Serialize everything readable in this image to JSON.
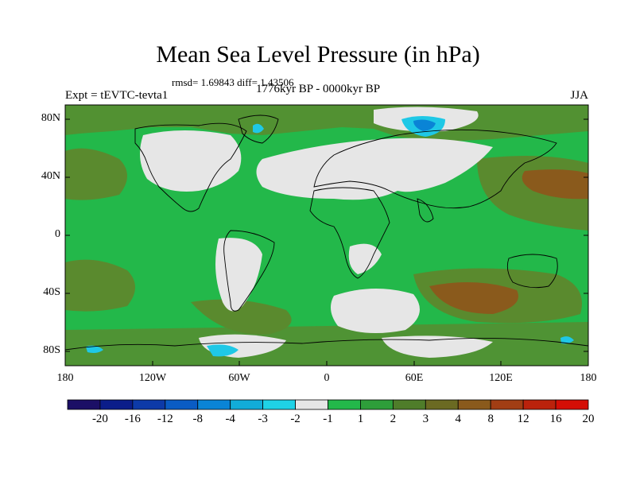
{
  "map": {
    "title": "Mean Sea Level Pressure (in hPa)",
    "stats": "rmsd= 1.69843 diff= 1.43506",
    "period": "1776kyr BP - 0000kyr BP",
    "experiment": "Expt = tEVTC-tevta1",
    "season": "JJA",
    "lat_labels": [
      "80N",
      "40N",
      "0",
      "40S",
      "80S"
    ],
    "lon_labels": [
      "180",
      "120W",
      "60W",
      "0",
      "60E",
      "120E",
      "180"
    ]
  },
  "legend": {
    "colors": [
      "#1b0f66",
      "#0b1d8a",
      "#0d3aa8",
      "#0a5cc4",
      "#0a84d6",
      "#12acd8",
      "#1fd2e6",
      "#e6e6e6",
      "#23b84a",
      "#2e9e3a",
      "#4f7d2a",
      "#6b6a22",
      "#8a5a1c",
      "#a23e14",
      "#bb220c",
      "#d40e06"
    ],
    "labels": [
      "-20",
      "-16",
      "-12",
      "-8",
      "-4",
      "-3",
      "-2",
      "-1",
      "1",
      "2",
      "3",
      "4",
      "8",
      "12",
      "16",
      "20"
    ]
  },
  "palette": {
    "ocean_green": "#23b84a",
    "land_grey": "#e6e6e6",
    "olive": "#5a8a2e",
    "brown": "#8a5a1c",
    "cyan": "#1fc8e6",
    "blue": "#0a84d6"
  }
}
